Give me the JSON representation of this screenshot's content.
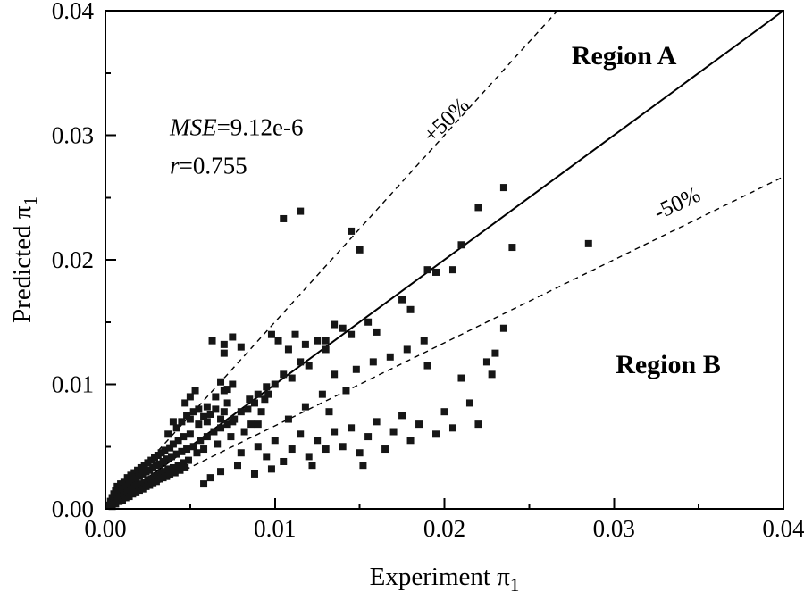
{
  "figure": {
    "background": "#ffffff",
    "frame_color": "#000000",
    "marker_color": "#161616"
  },
  "chart_data": {
    "type": "scatter",
    "title": "",
    "xlabel_base": "Experiment π",
    "xlabel_sub": "1",
    "ylabel_base": "Predicted π",
    "ylabel_sub": "1",
    "xlim": [
      0,
      0.04
    ],
    "ylim": [
      0,
      0.04
    ],
    "grid": false,
    "x_major_ticks": [
      0,
      0.01,
      0.02,
      0.03,
      0.04
    ],
    "x_tick_labels": [
      "0.00",
      "0.01",
      "0.02",
      "0.03",
      "0.04"
    ],
    "y_major_ticks": [
      0,
      0.01,
      0.02,
      0.03,
      0.04
    ],
    "y_tick_labels": [
      "0.00",
      "0.01",
      "0.02",
      "0.03",
      "0.04"
    ],
    "minor_ticks": [
      0.005,
      0.015,
      0.025,
      0.035
    ],
    "marker": {
      "shape": "square",
      "size": 8
    },
    "reference_lines": [
      {
        "name": "identity-line",
        "slope": 1,
        "style": "solid",
        "width": 2
      },
      {
        "name": "plus50-line",
        "slope": 1.5,
        "style": "dashed",
        "width": 1.4,
        "label": "+50%",
        "label_pos": [
          0.0204,
          0.0308
        ],
        "label_rotation": -44
      },
      {
        "name": "minus50-line",
        "slope": 0.66667,
        "style": "dashed",
        "width": 1.4,
        "label": "-50%",
        "label_pos": [
          0.0339,
          0.024
        ],
        "label_rotation": -25
      }
    ],
    "annotations": [
      {
        "name": "region-a-label",
        "text": "Region A",
        "pos": [
          0.0306,
          0.0357
        ],
        "bold": true,
        "size": 30,
        "anchor": "middle"
      },
      {
        "name": "region-b-label",
        "text": "Region B",
        "pos": [
          0.0332,
          0.0109
        ],
        "bold": true,
        "size": 30,
        "anchor": "middle"
      },
      {
        "name": "stat-mse",
        "parts": [
          {
            "text": "MSE",
            "italic": true
          },
          {
            "text": "=9.12e-6",
            "italic": false
          }
        ],
        "pos": [
          0.0038,
          0.03
        ],
        "size": 27,
        "anchor": "start"
      },
      {
        "name": "stat-r",
        "parts": [
          {
            "text": "r",
            "italic": true
          },
          {
            "text": "=0.755",
            "italic": false
          }
        ],
        "pos": [
          0.0038,
          0.0269
        ],
        "size": 27,
        "anchor": "start"
      }
    ],
    "points": [
      [
        0.0002,
        0.0003
      ],
      [
        0.0003,
        0.0006
      ],
      [
        0.0004,
        0.0002
      ],
      [
        0.0004,
        0.0009
      ],
      [
        0.0005,
        0.0005
      ],
      [
        0.0005,
        0.0012
      ],
      [
        0.0006,
        0.0004
      ],
      [
        0.0006,
        0.0015
      ],
      [
        0.0007,
        0.0008
      ],
      [
        0.0007,
        0.0018
      ],
      [
        0.0008,
        0.0006
      ],
      [
        0.0008,
        0.0013
      ],
      [
        0.0009,
        0.001
      ],
      [
        0.0009,
        0.002
      ],
      [
        0.001,
        0.0007
      ],
      [
        0.001,
        0.0016
      ],
      [
        0.0011,
        0.0011
      ],
      [
        0.0011,
        0.0022
      ],
      [
        0.0012,
        0.0009
      ],
      [
        0.0012,
        0.0018
      ],
      [
        0.0013,
        0.0013
      ],
      [
        0.0013,
        0.0025
      ],
      [
        0.0014,
        0.001
      ],
      [
        0.0014,
        0.002
      ],
      [
        0.0015,
        0.0015
      ],
      [
        0.0015,
        0.0027
      ],
      [
        0.0016,
        0.0012
      ],
      [
        0.0016,
        0.0022
      ],
      [
        0.0017,
        0.0017
      ],
      [
        0.0017,
        0.0029
      ],
      [
        0.0018,
        0.0013
      ],
      [
        0.0018,
        0.0024
      ],
      [
        0.0019,
        0.0019
      ],
      [
        0.0019,
        0.0031
      ],
      [
        0.002,
        0.0015
      ],
      [
        0.002,
        0.0026
      ],
      [
        0.0021,
        0.002
      ],
      [
        0.0021,
        0.0033
      ],
      [
        0.0022,
        0.0016
      ],
      [
        0.0022,
        0.0028
      ],
      [
        0.0023,
        0.0021
      ],
      [
        0.0023,
        0.0035
      ],
      [
        0.0024,
        0.0018
      ],
      [
        0.0024,
        0.003
      ],
      [
        0.0025,
        0.0023
      ],
      [
        0.0025,
        0.0037
      ],
      [
        0.0026,
        0.0019
      ],
      [
        0.0026,
        0.0031
      ],
      [
        0.0027,
        0.0024
      ],
      [
        0.0027,
        0.0039
      ],
      [
        0.0028,
        0.0021
      ],
      [
        0.0028,
        0.0033
      ],
      [
        0.0029,
        0.0026
      ],
      [
        0.0029,
        0.0041
      ],
      [
        0.003,
        0.0022
      ],
      [
        0.003,
        0.0035
      ],
      [
        0.0031,
        0.0027
      ],
      [
        0.0031,
        0.0043
      ],
      [
        0.0032,
        0.0024
      ],
      [
        0.0032,
        0.0036
      ],
      [
        0.0033,
        0.0029
      ],
      [
        0.0033,
        0.0045
      ],
      [
        0.0034,
        0.0025
      ],
      [
        0.0034,
        0.0038
      ],
      [
        0.0035,
        0.003
      ],
      [
        0.0035,
        0.0047
      ],
      [
        0.0036,
        0.0026
      ],
      [
        0.0036,
        0.004
      ],
      [
        0.0037,
        0.0032
      ],
      [
        0.0038,
        0.0049
      ],
      [
        0.0038,
        0.0028
      ],
      [
        0.0039,
        0.0042
      ],
      [
        0.004,
        0.0033
      ],
      [
        0.004,
        0.0052
      ],
      [
        0.0041,
        0.0029
      ],
      [
        0.0042,
        0.0044
      ],
      [
        0.0043,
        0.0035
      ],
      [
        0.0043,
        0.0055
      ],
      [
        0.0044,
        0.0031
      ],
      [
        0.0045,
        0.0046
      ],
      [
        0.0046,
        0.0037
      ],
      [
        0.0046,
        0.0058
      ],
      [
        0.0047,
        0.0033
      ],
      [
        0.0048,
        0.0048
      ],
      [
        0.0049,
        0.0039
      ],
      [
        0.005,
        0.006
      ],
      [
        0.0037,
        0.006
      ],
      [
        0.004,
        0.007
      ],
      [
        0.0042,
        0.0065
      ],
      [
        0.0045,
        0.007
      ],
      [
        0.0047,
        0.0085
      ],
      [
        0.0048,
        0.0075
      ],
      [
        0.005,
        0.0072
      ],
      [
        0.005,
        0.009
      ],
      [
        0.0052,
        0.0078
      ],
      [
        0.0053,
        0.0095
      ],
      [
        0.0055,
        0.0068
      ],
      [
        0.0055,
        0.008
      ],
      [
        0.0058,
        0.0074
      ],
      [
        0.006,
        0.0082
      ],
      [
        0.006,
        0.007
      ],
      [
        0.0062,
        0.0076
      ],
      [
        0.0065,
        0.008
      ],
      [
        0.0068,
        0.0072
      ],
      [
        0.007,
        0.0078
      ],
      [
        0.0072,
        0.0085
      ],
      [
        0.0075,
        0.007
      ],
      [
        0.0065,
        0.009
      ],
      [
        0.007,
        0.0095
      ],
      [
        0.0075,
        0.01
      ],
      [
        0.0063,
        0.0135
      ],
      [
        0.007,
        0.0125
      ],
      [
        0.008,
        0.013
      ],
      [
        0.0068,
        0.0102
      ],
      [
        0.0072,
        0.0096
      ],
      [
        0.0075,
        0.0138
      ],
      [
        0.007,
        0.0132
      ],
      [
        0.0105,
        0.0233
      ],
      [
        0.0115,
        0.0239
      ],
      [
        0.0145,
        0.0223
      ],
      [
        0.015,
        0.0208
      ],
      [
        0.0098,
        0.014
      ],
      [
        0.0102,
        0.0135
      ],
      [
        0.0108,
        0.0128
      ],
      [
        0.0112,
        0.014
      ],
      [
        0.0118,
        0.0132
      ],
      [
        0.0125,
        0.0135
      ],
      [
        0.013,
        0.0128
      ],
      [
        0.0135,
        0.0148
      ],
      [
        0.014,
        0.0145
      ],
      [
        0.0155,
        0.015
      ],
      [
        0.016,
        0.0142
      ],
      [
        0.0085,
        0.0088
      ],
      [
        0.009,
        0.0092
      ],
      [
        0.0095,
        0.0098
      ],
      [
        0.01,
        0.01
      ],
      [
        0.0105,
        0.0108
      ],
      [
        0.011,
        0.0105
      ],
      [
        0.0115,
        0.0118
      ],
      [
        0.012,
        0.0115
      ],
      [
        0.013,
        0.0135
      ],
      [
        0.0145,
        0.014
      ],
      [
        0.019,
        0.0192
      ],
      [
        0.0195,
        0.019
      ],
      [
        0.021,
        0.0212
      ],
      [
        0.024,
        0.021
      ],
      [
        0.0235,
        0.0258
      ],
      [
        0.022,
        0.0242
      ],
      [
        0.0285,
        0.0213
      ],
      [
        0.018,
        0.016
      ],
      [
        0.0175,
        0.0168
      ],
      [
        0.0205,
        0.0192
      ],
      [
        0.008,
        0.0045
      ],
      [
        0.009,
        0.005
      ],
      [
        0.0095,
        0.0042
      ],
      [
        0.01,
        0.0055
      ],
      [
        0.0105,
        0.0038
      ],
      [
        0.011,
        0.0048
      ],
      [
        0.0115,
        0.006
      ],
      [
        0.012,
        0.0042
      ],
      [
        0.0125,
        0.0055
      ],
      [
        0.013,
        0.0048
      ],
      [
        0.0135,
        0.0062
      ],
      [
        0.014,
        0.005
      ],
      [
        0.0145,
        0.0065
      ],
      [
        0.015,
        0.0045
      ],
      [
        0.0155,
        0.0058
      ],
      [
        0.016,
        0.007
      ],
      [
        0.0165,
        0.0048
      ],
      [
        0.017,
        0.0062
      ],
      [
        0.0175,
        0.0075
      ],
      [
        0.018,
        0.0055
      ],
      [
        0.0185,
        0.0068
      ],
      [
        0.019,
        0.0115
      ],
      [
        0.0195,
        0.006
      ],
      [
        0.02,
        0.0078
      ],
      [
        0.0205,
        0.0065
      ],
      [
        0.021,
        0.0105
      ],
      [
        0.0215,
        0.0085
      ],
      [
        0.022,
        0.0068
      ],
      [
        0.0225,
        0.0118
      ],
      [
        0.023,
        0.0125
      ],
      [
        0.0235,
        0.0145
      ],
      [
        0.0228,
        0.0108
      ],
      [
        0.0152,
        0.0035
      ],
      [
        0.0122,
        0.0035
      ],
      [
        0.0098,
        0.0032
      ],
      [
        0.0088,
        0.0028
      ],
      [
        0.0078,
        0.0035
      ],
      [
        0.0068,
        0.003
      ],
      [
        0.0062,
        0.0025
      ],
      [
        0.0058,
        0.002
      ],
      [
        0.0135,
        0.0108
      ],
      [
        0.0128,
        0.0092
      ],
      [
        0.0148,
        0.0112
      ],
      [
        0.0158,
        0.0118
      ],
      [
        0.0168,
        0.0122
      ],
      [
        0.0178,
        0.0128
      ],
      [
        0.0188,
        0.0135
      ],
      [
        0.0142,
        0.0095
      ],
      [
        0.0132,
        0.0078
      ],
      [
        0.0118,
        0.0082
      ],
      [
        0.0108,
        0.0072
      ],
      [
        0.0092,
        0.0078
      ],
      [
        0.0086,
        0.0068
      ],
      [
        0.0052,
        0.005
      ],
      [
        0.0056,
        0.0055
      ],
      [
        0.006,
        0.0058
      ],
      [
        0.0064,
        0.0062
      ],
      [
        0.0068,
        0.0065
      ],
      [
        0.0072,
        0.0068
      ],
      [
        0.0076,
        0.0072
      ],
      [
        0.008,
        0.0078
      ],
      [
        0.0084,
        0.008
      ],
      [
        0.0088,
        0.0085
      ],
      [
        0.0054,
        0.0045
      ],
      [
        0.0058,
        0.0048
      ],
      [
        0.0066,
        0.0052
      ],
      [
        0.0074,
        0.0058
      ],
      [
        0.0082,
        0.0062
      ],
      [
        0.009,
        0.0068
      ],
      [
        0.0094,
        0.0088
      ],
      [
        0.0096,
        0.0092
      ]
    ]
  }
}
